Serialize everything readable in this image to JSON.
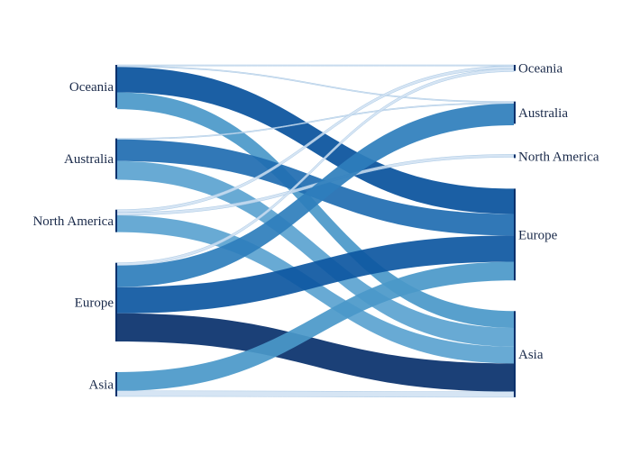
{
  "chart_data": {
    "type": "sankey",
    "title": "",
    "left_nodes": [
      {
        "label": "Oceania"
      },
      {
        "label": "Australia"
      },
      {
        "label": "North America"
      },
      {
        "label": "Europe"
      },
      {
        "label": "Asia"
      }
    ],
    "right_nodes": [
      {
        "label": "Oceania"
      },
      {
        "label": "Australia"
      },
      {
        "label": "North America"
      },
      {
        "label": "Europe"
      },
      {
        "label": "Asia"
      }
    ],
    "flows": [
      {
        "source": "Oceania",
        "target": "Oceania",
        "value": 0.4,
        "color": "#cfe1f2"
      },
      {
        "source": "Oceania",
        "target": "Australia",
        "value": 0.4,
        "color": "#cfe1f2"
      },
      {
        "source": "Oceania",
        "target": "Europe",
        "value": 27,
        "color": "#08519c"
      },
      {
        "source": "Oceania",
        "target": "Asia",
        "value": 18,
        "color": "#4a98c9"
      },
      {
        "source": "Australia",
        "target": "Australia",
        "value": 0.4,
        "color": "#cfe1f2"
      },
      {
        "source": "Australia",
        "target": "Europe",
        "value": 23,
        "color": "#1f6db1"
      },
      {
        "source": "Australia",
        "target": "Asia",
        "value": 20,
        "color": "#5ba3d0"
      },
      {
        "source": "North America",
        "target": "Oceania",
        "value": 3,
        "color": "#cfe1f2"
      },
      {
        "source": "North America",
        "target": "North America",
        "value": 3,
        "color": "#cfe1f2"
      },
      {
        "source": "North America",
        "target": "Asia",
        "value": 18,
        "color": "#5ba3d0"
      },
      {
        "source": "Europe",
        "target": "Oceania",
        "value": 3,
        "color": "#cfe1f2"
      },
      {
        "source": "Europe",
        "target": "Australia",
        "value": 23,
        "color": "#2e7ebc"
      },
      {
        "source": "Europe",
        "target": "Europe",
        "value": 28,
        "color": "#0d57a1"
      },
      {
        "source": "Europe",
        "target": "Asia",
        "value": 30,
        "color": "#08306b"
      },
      {
        "source": "Asia",
        "target": "Europe",
        "value": 20,
        "color": "#4a98c9"
      },
      {
        "source": "Asia",
        "target": "Asia",
        "value": 6,
        "color": "#cfe1f2"
      }
    ]
  }
}
